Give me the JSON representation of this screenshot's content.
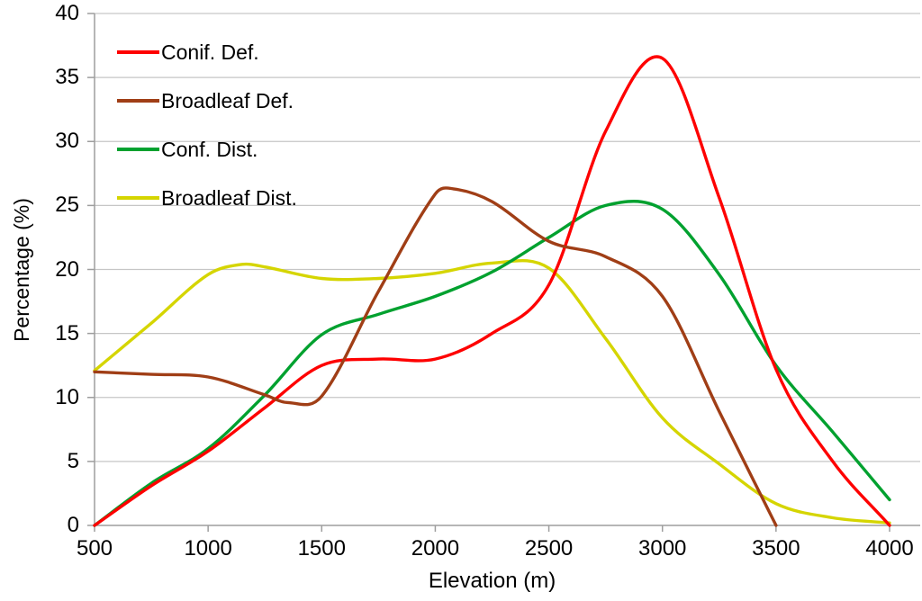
{
  "chart_data": {
    "type": "line",
    "title": "",
    "xlabel": "Elevation (m)",
    "ylabel": "Percentage (%)",
    "xlim": [
      500,
      4140
    ],
    "ylim": [
      0,
      40
    ],
    "x_ticks": [
      500,
      1000,
      1500,
      2000,
      2500,
      3000,
      3500,
      4000
    ],
    "y_ticks": [
      0,
      5,
      10,
      15,
      20,
      25,
      30,
      35,
      40
    ],
    "grid": "horizontal-only",
    "legend_position": "top-left-inside",
    "line_smoothing": "spline",
    "colors": {
      "grid": "#C6C6C6",
      "axis": "#9E9E9E",
      "text": "#000000",
      "background": "#FFFFFF"
    },
    "series": [
      {
        "name": "Conif. Def.",
        "color": "#FE0000",
        "x": [
          500,
          750,
          1000,
          1250,
          1500,
          1750,
          2000,
          2250,
          2500,
          2750,
          3000,
          3250,
          3500,
          3750,
          4000
        ],
        "y": [
          0,
          3.1,
          5.8,
          9.2,
          12.5,
          13.0,
          13.0,
          15.0,
          18.8,
          30.8,
          36.5,
          25.6,
          12.2,
          5.0,
          0
        ]
      },
      {
        "name": "Broadleaf Def.",
        "color": "#A03E16",
        "x": [
          500,
          750,
          1000,
          1250,
          1350,
          1500,
          1750,
          2000,
          2080,
          2250,
          2500,
          2750,
          3000,
          3250,
          3500
        ],
        "y": [
          12.0,
          11.8,
          11.6,
          10.2,
          9.6,
          10.1,
          18.3,
          25.9,
          26.3,
          25.3,
          22.2,
          21.0,
          17.9,
          8.9,
          0
        ]
      },
      {
        "name": "Conf. Dist.",
        "color": "#00A12F",
        "x": [
          500,
          750,
          1000,
          1250,
          1500,
          1750,
          2000,
          2250,
          2500,
          2750,
          3000,
          3250,
          3500,
          3750,
          4000
        ],
        "y": [
          0,
          3.3,
          6.0,
          10.2,
          14.9,
          16.5,
          17.9,
          19.8,
          22.5,
          25.0,
          24.7,
          19.6,
          12.5,
          7.3,
          2.0
        ]
      },
      {
        "name": "Broadleaf Dist.",
        "color": "#D5D500",
        "x": [
          500,
          750,
          1000,
          1150,
          1250,
          1500,
          1750,
          2000,
          2250,
          2500,
          2750,
          3000,
          3250,
          3500,
          3750,
          4000
        ],
        "y": [
          12.1,
          15.8,
          19.6,
          20.4,
          20.2,
          19.3,
          19.3,
          19.7,
          20.5,
          20.1,
          14.6,
          8.4,
          4.8,
          1.7,
          0.6,
          0.2
        ]
      }
    ],
    "draw_order": [
      3,
      2,
      0,
      1
    ]
  }
}
